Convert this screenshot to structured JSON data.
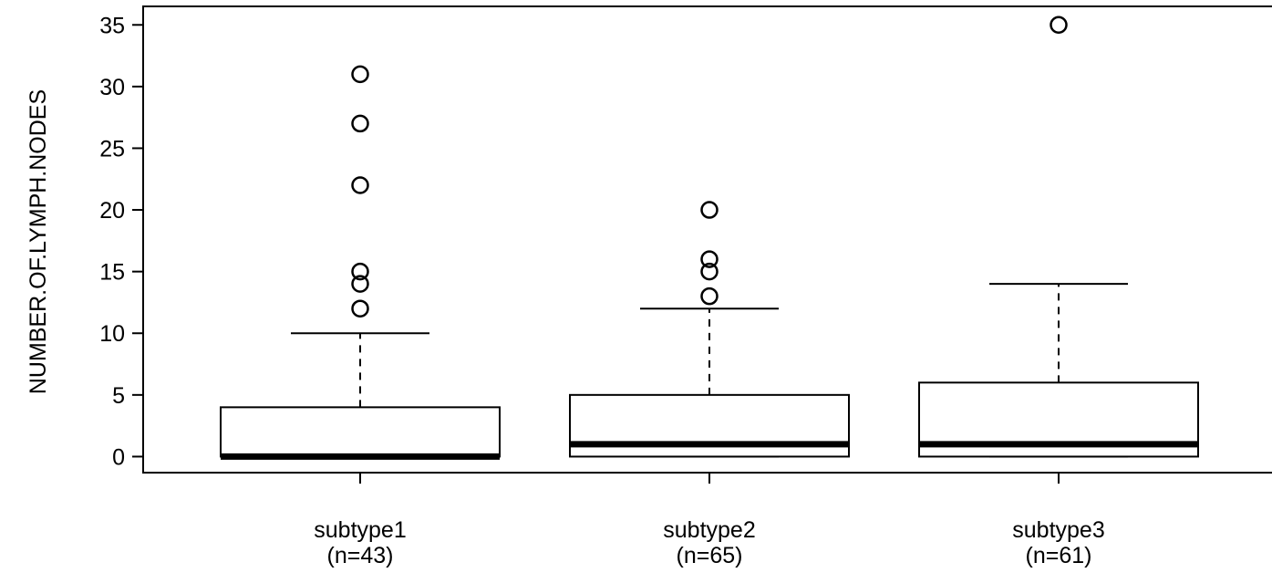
{
  "chart_data": {
    "type": "boxplot",
    "title": "",
    "xlabel": "",
    "ylabel": "NUMBER.OF.LYMPH.NODES",
    "ylim": [
      -1.3,
      36.5
    ],
    "yticks": [
      0,
      5,
      10,
      15,
      20,
      25,
      30,
      35
    ],
    "grid": false,
    "groups": [
      {
        "label": "subtype1",
        "n_label": "(n=43)",
        "whisker_low": 0,
        "q1": 0,
        "median": 0,
        "q3": 4,
        "whisker_high": 10,
        "outliers": [
          12,
          14,
          15,
          22,
          27,
          31
        ]
      },
      {
        "label": "subtype2",
        "n_label": "(n=65)",
        "whisker_low": 0,
        "q1": 0,
        "median": 1,
        "q3": 5,
        "whisker_high": 12,
        "outliers": [
          13,
          15,
          16,
          20
        ]
      },
      {
        "label": "subtype3",
        "n_label": "(n=61)",
        "whisker_low": 0,
        "q1": 0,
        "median": 1,
        "q3": 6,
        "whisker_high": 14,
        "outliers": [
          35
        ]
      }
    ]
  }
}
